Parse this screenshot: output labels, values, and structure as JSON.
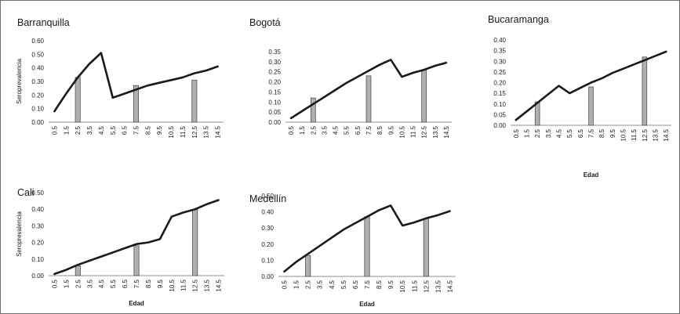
{
  "chart_data": [
    {
      "type": "bar+line",
      "title": "Barranquilla",
      "ylabel": "Seroprevalencia",
      "xlabel": "",
      "categories": [
        "0.5",
        "1.5",
        "2.5",
        "3.5",
        "4.5",
        "5.5",
        "6.5",
        "7.5",
        "8.5",
        "9.5",
        "10.5",
        "11.5",
        "12.5",
        "13.5",
        "14.5"
      ],
      "yticks": [
        "0.00",
        "0.10",
        "0.20",
        "0.30",
        "0.40",
        "0.50",
        "0.60"
      ],
      "ylim": [
        0,
        0.6
      ],
      "bars": [
        {
          "x": "2.5",
          "value": 0.33
        },
        {
          "x": "7.5",
          "value": 0.27
        },
        {
          "x": "12.5",
          "value": 0.31
        }
      ],
      "line": [
        0.08,
        0.21,
        0.33,
        0.43,
        0.51,
        0.18,
        0.21,
        0.24,
        0.27,
        0.29,
        0.31,
        0.33,
        0.36,
        0.38,
        0.41
      ]
    },
    {
      "type": "bar+line",
      "title": "Bogotá",
      "ylabel": "",
      "xlabel": "",
      "categories": [
        "0.5",
        "1.5",
        "2.5",
        "3.5",
        "4.5",
        "5.5",
        "6.5",
        "7.5",
        "8.5",
        "9.5",
        "10.5",
        "11.5",
        "12.5",
        "13.5",
        "14.5"
      ],
      "yticks": [
        "0.00",
        "0.05",
        "0.10",
        "0.15",
        "0.20",
        "0.25",
        "0.30",
        "0.35"
      ],
      "ylim": [
        0,
        0.35
      ],
      "bars": [
        {
          "x": "2.5",
          "value": 0.12
        },
        {
          "x": "7.5",
          "value": 0.23
        },
        {
          "x": "12.5",
          "value": 0.26
        }
      ],
      "line": [
        0.02,
        0.055,
        0.09,
        0.125,
        0.16,
        0.195,
        0.225,
        0.255,
        0.285,
        0.31,
        0.225,
        0.245,
        0.26,
        0.28,
        0.295
      ]
    },
    {
      "type": "bar+line",
      "title": "Bucaramanga",
      "ylabel": "",
      "xlabel": "Edad",
      "categories": [
        "0.5",
        "1.5",
        "2.5",
        "3.5",
        "4.5",
        "5.5",
        "6.5",
        "7.5",
        "8.5",
        "9.5",
        "10.5",
        "11.5",
        "12.5",
        "13.5",
        "14.5"
      ],
      "yticks": [
        "0.00",
        "0.05",
        "0.10",
        "0.15",
        "0.20",
        "0.25",
        "0.30",
        "0.35",
        "0.40"
      ],
      "ylim": [
        0,
        0.4
      ],
      "bars": [
        {
          "x": "2.5",
          "value": 0.11
        },
        {
          "x": "7.5",
          "value": 0.18
        },
        {
          "x": "12.5",
          "value": 0.32
        }
      ],
      "line": [
        0.025,
        0.065,
        0.105,
        0.145,
        0.185,
        0.15,
        0.175,
        0.2,
        0.22,
        0.245,
        0.265,
        0.285,
        0.305,
        0.325,
        0.345
      ]
    },
    {
      "type": "bar+line",
      "title": "Cali",
      "ylabel": "Seroprevalencia",
      "xlabel": "Edad",
      "categories": [
        "0.5",
        "1.5",
        "2.5",
        "3.5",
        "4.5",
        "5.5",
        "6.5",
        "7.5",
        "8.5",
        "9.5",
        "10.5",
        "11.5",
        "12.5",
        "13.5",
        "14.5"
      ],
      "yticks": [
        "0.00",
        "0.10",
        "0.20",
        "0.30",
        "0.40",
        "0.50"
      ],
      "ylim": [
        0,
        0.5
      ],
      "bars": [
        {
          "x": "2.5",
          "value": 0.06
        },
        {
          "x": "7.5",
          "value": 0.18
        },
        {
          "x": "12.5",
          "value": 0.4
        }
      ],
      "line": [
        0.01,
        0.035,
        0.065,
        0.09,
        0.115,
        0.14,
        0.165,
        0.19,
        0.2,
        0.22,
        0.355,
        0.38,
        0.4,
        0.43,
        0.455
      ]
    },
    {
      "type": "bar+line",
      "title": "Medellín",
      "ylabel": "",
      "xlabel": "Edad",
      "categories": [
        "0.5",
        "1.5",
        "2.5",
        "3.5",
        "4.5",
        "5.5",
        "6.5",
        "7.5",
        "8.5",
        "9.5",
        "10.5",
        "11.5",
        "12.5",
        "13.5",
        "14.5"
      ],
      "yticks": [
        "0.00",
        "0.10",
        "0.20",
        "0.30",
        "0.40",
        "0.50"
      ],
      "ylim": [
        0,
        0.5
      ],
      "bars": [
        {
          "x": "2.5",
          "value": 0.13
        },
        {
          "x": "7.5",
          "value": 0.37
        },
        {
          "x": "12.5",
          "value": 0.36
        }
      ],
      "line": [
        0.03,
        0.09,
        0.14,
        0.19,
        0.24,
        0.29,
        0.33,
        0.37,
        0.41,
        0.44,
        0.315,
        0.335,
        0.36,
        0.38,
        0.405
      ]
    }
  ]
}
